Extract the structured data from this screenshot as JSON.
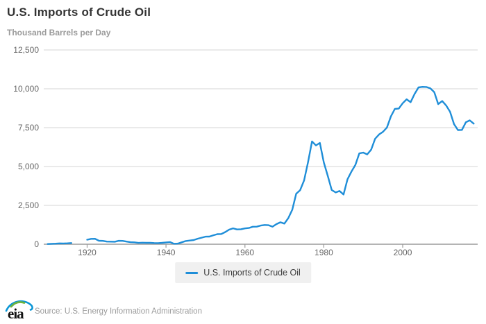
{
  "header": {
    "title": "U.S. Imports of Crude Oil",
    "subtitle": "Thousand Barrels per Day"
  },
  "legend": {
    "label": "U.S. Imports of Crude Oil"
  },
  "footer": {
    "logo_text": "eia",
    "source": "Source: U.S. Energy Information Administration"
  },
  "colors": {
    "line": "#1f8ed8",
    "grid": "#e3e3e3",
    "axis": "#9b9b9b",
    "tick": "#9b9b9b",
    "tick_label": "#666666",
    "title": "#333333",
    "subtitle": "#9a9a9a",
    "legend_bg": "#f0f0f0",
    "logo_green": "#6cb33f",
    "logo_blue": "#0a96d6",
    "logo_ink": "#111111"
  },
  "chart_data": {
    "type": "line",
    "title": "U.S. Imports of Crude Oil",
    "ylabel": "Thousand Barrels per Day",
    "xlabel": "",
    "grid": "horizontal-only",
    "legend_position": "bottom-center",
    "xlim": [
      1909,
      2019
    ],
    "ylim": [
      0,
      12500
    ],
    "x_ticks": [
      {
        "value": 1920,
        "label": "1920"
      },
      {
        "value": 1940,
        "label": "1940"
      },
      {
        "value": 1960,
        "label": "1960"
      },
      {
        "value": 1980,
        "label": "1980"
      },
      {
        "value": 2000,
        "label": "2000"
      }
    ],
    "y_ticks": [
      {
        "value": 0,
        "label": "0"
      },
      {
        "value": 2500,
        "label": "2,500"
      },
      {
        "value": 5000,
        "label": "5,000"
      },
      {
        "value": 7500,
        "label": "7,500"
      },
      {
        "value": 10000,
        "label": "10,000"
      },
      {
        "value": 12500,
        "label": "12,500"
      }
    ],
    "series": [
      {
        "name": "U.S. Imports of Crude Oil",
        "units": "thousand barrels per day",
        "segments": [
          [
            [
              1910,
              15
            ],
            [
              1911,
              25
            ],
            [
              1912,
              35
            ],
            [
              1913,
              55
            ],
            [
              1914,
              50
            ],
            [
              1915,
              60
            ],
            [
              1916,
              75
            ]
          ],
          [
            [
              1920,
              291
            ],
            [
              1921,
              344
            ],
            [
              1922,
              349
            ],
            [
              1923,
              225
            ],
            [
              1924,
              213
            ],
            [
              1925,
              169
            ],
            [
              1926,
              165
            ],
            [
              1927,
              160
            ],
            [
              1928,
              219
            ],
            [
              1929,
              216
            ],
            [
              1930,
              170
            ],
            [
              1931,
              130
            ],
            [
              1932,
              122
            ],
            [
              1933,
              87
            ],
            [
              1934,
              99
            ],
            [
              1935,
              88
            ],
            [
              1936,
              89
            ],
            [
              1937,
              75
            ],
            [
              1938,
              72
            ],
            [
              1939,
              91
            ],
            [
              1940,
              117
            ],
            [
              1941,
              139
            ],
            [
              1942,
              33
            ],
            [
              1943,
              38
            ],
            [
              1944,
              123
            ],
            [
              1945,
              204
            ],
            [
              1946,
              236
            ],
            [
              1947,
              267
            ],
            [
              1948,
              354
            ],
            [
              1949,
              421
            ],
            [
              1950,
              487
            ],
            [
              1951,
              491
            ],
            [
              1952,
              574
            ],
            [
              1953,
              648
            ],
            [
              1954,
              656
            ],
            [
              1955,
              782
            ],
            [
              1956,
              937
            ],
            [
              1957,
              1023
            ],
            [
              1958,
              953
            ],
            [
              1959,
              965
            ],
            [
              1960,
              1018
            ],
            [
              1961,
              1045
            ],
            [
              1962,
              1126
            ],
            [
              1963,
              1131
            ],
            [
              1964,
              1202
            ],
            [
              1965,
              1238
            ],
            [
              1966,
              1225
            ],
            [
              1967,
              1128
            ],
            [
              1968,
              1294
            ],
            [
              1969,
              1409
            ],
            [
              1970,
              1324
            ],
            [
              1971,
              1681
            ],
            [
              1972,
              2222
            ],
            [
              1973,
              3244
            ],
            [
              1974,
              3477
            ],
            [
              1975,
              4105
            ],
            [
              1976,
              5287
            ],
            [
              1977,
              6615
            ],
            [
              1978,
              6356
            ],
            [
              1979,
              6519
            ],
            [
              1980,
              5263
            ],
            [
              1981,
              4396
            ],
            [
              1982,
              3488
            ],
            [
              1983,
              3329
            ],
            [
              1984,
              3426
            ],
            [
              1985,
              3201
            ],
            [
              1986,
              4178
            ],
            [
              1987,
              4674
            ],
            [
              1988,
              5107
            ],
            [
              1989,
              5843
            ],
            [
              1990,
              5894
            ],
            [
              1991,
              5782
            ],
            [
              1992,
              6083
            ],
            [
              1993,
              6787
            ],
            [
              1994,
              7063
            ],
            [
              1995,
              7230
            ],
            [
              1996,
              7508
            ],
            [
              1997,
              8225
            ],
            [
              1998,
              8706
            ],
            [
              1999,
              8731
            ],
            [
              2000,
              9071
            ],
            [
              2001,
              9328
            ],
            [
              2002,
              9140
            ],
            [
              2003,
              9665
            ],
            [
              2004,
              10088
            ],
            [
              2005,
              10126
            ],
            [
              2006,
              10118
            ],
            [
              2007,
              10031
            ],
            [
              2008,
              9783
            ],
            [
              2009,
              9013
            ],
            [
              2010,
              9213
            ],
            [
              2011,
              8935
            ],
            [
              2012,
              8527
            ],
            [
              2013,
              7730
            ],
            [
              2014,
              7344
            ],
            [
              2015,
              7351
            ],
            [
              2016,
              7850
            ],
            [
              2017,
              7969
            ],
            [
              2018,
              7757
            ]
          ]
        ]
      }
    ]
  }
}
